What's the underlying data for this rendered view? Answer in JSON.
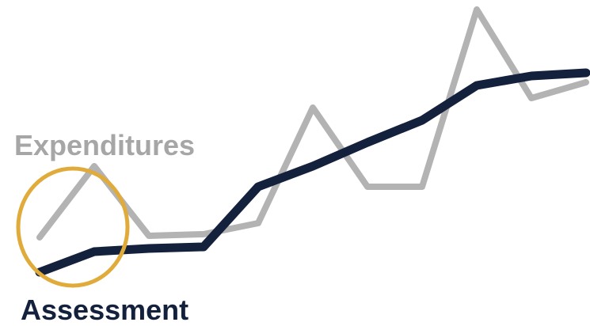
{
  "chart_data": {
    "type": "line",
    "categories": [
      null,
      null,
      null,
      null,
      null,
      null,
      null,
      null,
      null,
      null,
      null
    ],
    "ylim": [
      0,
      100
    ],
    "series": [
      {
        "name": "Expenditures",
        "color": "#b3b3b3",
        "values": [
          25,
          47.5,
          25.5,
          26,
          29.5,
          66,
          41,
          41,
          97,
          69,
          74
        ]
      },
      {
        "name": "Assessment",
        "color": "#14213d",
        "values": [
          14,
          20.5,
          21.5,
          22,
          41,
          47.5,
          55,
          62,
          73,
          76,
          77
        ]
      }
    ]
  }
}
